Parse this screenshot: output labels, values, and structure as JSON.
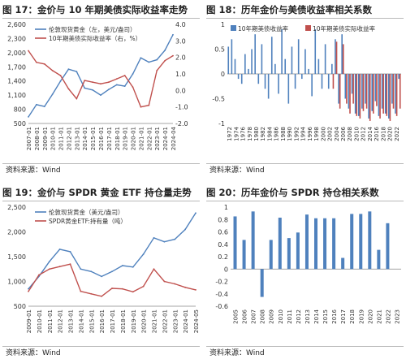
{
  "colors": {
    "blue": "#4f81bd",
    "red": "#c0504d",
    "axis": "#888888",
    "text": "#333333"
  },
  "chart_data": [
    {
      "id": "fig17",
      "type": "line",
      "title": "图 17：金价与 10 年期美债实际收益率走势",
      "source": "资料来源：Wind",
      "x": [
        "2007-01",
        "2008-01",
        "2009-01",
        "2010-01",
        "2011-01",
        "2012-01",
        "2013-01",
        "2014-01",
        "2015-01",
        "2016-01",
        "2017-01",
        "2018-01",
        "2019-01",
        "2020-01",
        "2021-01",
        "2022-01",
        "2023-01",
        "2024-01",
        "2024-04"
      ],
      "xticks": [
        "2007-01",
        "2008-01",
        "2009-01",
        "2010-01",
        "2011-01",
        "2012-01",
        "2013-01",
        "2014-01",
        "2015-01",
        "2016-01",
        "2017-01",
        "2018-01",
        "2019-01",
        "2020-01",
        "2021-01",
        "2022-01",
        "2023-01",
        "2024-01",
        "2024-04"
      ],
      "y_left": {
        "min": 500,
        "max": 2600,
        "ticks": [
          "500",
          "800",
          "1,100",
          "1,400",
          "1,700",
          "2,000",
          "2,300",
          "2,600"
        ]
      },
      "y_right": {
        "min": -2,
        "max": 4,
        "ticks": [
          "-2.0",
          "-1.0",
          "0.0",
          "1.0",
          "2.0",
          "3.0",
          "4.0"
        ],
        "reversed": true
      },
      "series": [
        {
          "name": "伦敦现货黄金（左，美元/盎司）",
          "axis": "left",
          "color": "#4f81bd",
          "values": [
            640,
            900,
            860,
            1120,
            1400,
            1650,
            1600,
            1250,
            1210,
            1100,
            1220,
            1320,
            1290,
            1550,
            1890,
            1800,
            1850,
            2050,
            2380
          ]
        },
        {
          "name": "10年期美债实际收益率（右，%）",
          "axis": "right",
          "color": "#c0504d",
          "values": [
            2.4,
            1.7,
            1.6,
            1.2,
            0.9,
            0.1,
            -0.5,
            0.6,
            0.5,
            0.4,
            0.5,
            0.7,
            0.9,
            0.2,
            -1.0,
            -0.9,
            1.2,
            1.8,
            2.1
          ]
        }
      ]
    },
    {
      "id": "fig18",
      "type": "bar",
      "title": "图 18：历年金价与美债收益率相关系数",
      "source": "资料来源：Wind",
      "categories": [
        "1972",
        "1973",
        "1974",
        "1975",
        "1976",
        "1977",
        "1978",
        "1979",
        "1980",
        "1981",
        "1982",
        "1983",
        "1984",
        "1985",
        "1986",
        "1987",
        "1988",
        "1989",
        "1990",
        "1991",
        "1992",
        "1993",
        "1994",
        "1995",
        "1996",
        "1997",
        "1998",
        "1999",
        "2000",
        "2001",
        "2002",
        "2003",
        "2004",
        "2005",
        "2006",
        "2007",
        "2008",
        "2009",
        "2010",
        "2011",
        "2012",
        "2013",
        "2014",
        "2015",
        "2016",
        "2017",
        "2018",
        "2019",
        "2020",
        "2021",
        "2022",
        "2023"
      ],
      "xticks": [
        "1972",
        "1974",
        "1976",
        "1978",
        "1980",
        "1982",
        "1984",
        "1986",
        "1988",
        "1990",
        "1992",
        "1994",
        "1996",
        "1998",
        "2000",
        "2002",
        "2004",
        "2006",
        "2008",
        "2010",
        "2012",
        "2014",
        "2016",
        "2018",
        "2020",
        "2022"
      ],
      "ylim": [
        -1,
        1
      ],
      "yticks": [
        "-1",
        "-0.5",
        "0",
        "0.5",
        "1"
      ],
      "series": [
        {
          "name": "10年期美债收益率",
          "color": "#4f81bd",
          "values": [
            0.55,
            0.7,
            0.3,
            -0.1,
            -0.2,
            0.4,
            0.1,
            0.5,
            0.8,
            -0.2,
            0.6,
            -0.3,
            -0.5,
            0.75,
            0.2,
            -0.4,
            0.9,
            0.3,
            -0.6,
            0.55,
            -0.3,
            0.7,
            -0.1,
            0.5,
            0.1,
            -0.45,
            0.9,
            0.3,
            -0.3,
            0.6,
            -0.3,
            0.2,
            0.7,
            -0.6,
            0.8,
            -0.5,
            -0.7,
            -0.4,
            -0.8,
            -0.85,
            -0.7,
            -0.6,
            -0.9,
            -0.75,
            -0.55,
            -0.85,
            -0.7,
            -0.8,
            -0.9,
            -0.6,
            -0.8,
            -0.1
          ]
        },
        {
          "name": "10年期美债实际收益率",
          "color": "#c0504d",
          "values": [
            null,
            null,
            null,
            null,
            null,
            null,
            null,
            null,
            null,
            null,
            null,
            null,
            null,
            null,
            null,
            null,
            null,
            null,
            null,
            null,
            null,
            null,
            null,
            null,
            null,
            null,
            null,
            null,
            null,
            null,
            null,
            -0.3,
            0.65,
            -0.7,
            0.6,
            -0.6,
            -0.8,
            -0.6,
            -0.85,
            -0.9,
            -0.75,
            -0.7,
            -0.95,
            -0.8,
            -0.65,
            -0.9,
            -0.8,
            -0.85,
            -0.95,
            -0.7,
            -0.85,
            -0.7
          ]
        }
      ]
    },
    {
      "id": "fig19",
      "type": "line",
      "title": "图 19：金价与 SPDR 黄金 ETF 持仓量走势",
      "source": "资料来源：Wind",
      "x": [
        "2009-01",
        "2010-01",
        "2011-01",
        "2012-01",
        "2013-01",
        "2014-01",
        "2015-01",
        "2016-01",
        "2017-01",
        "2018-01",
        "2019-01",
        "2020-01",
        "2021-01",
        "2022-01",
        "2023-01",
        "2024-01",
        "2024-05"
      ],
      "xticks": [
        "2009-01",
        "2010-01",
        "2011-01",
        "2012-01",
        "2013-01",
        "2014-01",
        "2015-01",
        "2016-01",
        "2017-01",
        "2018-01",
        "2019-01",
        "2020-01",
        "2021-01",
        "2022-01",
        "2023-01",
        "2024-01",
        "2024-05"
      ],
      "ylim": [
        500,
        2500
      ],
      "yticks": [
        "500",
        "1,000",
        "1,500",
        "2,000",
        "2,500"
      ],
      "series": [
        {
          "name": "伦敦现货黄金（美元/盎司）",
          "color": "#4f81bd",
          "values": [
            850,
            1100,
            1400,
            1650,
            1600,
            1250,
            1200,
            1100,
            1200,
            1320,
            1290,
            1550,
            1880,
            1800,
            1850,
            2050,
            2380
          ]
        },
        {
          "name": "SPDR黄金ETF:持有量（吨）",
          "color": "#c0504d",
          "values": [
            800,
            1130,
            1250,
            1300,
            1350,
            800,
            750,
            700,
            860,
            850,
            790,
            900,
            1250,
            1000,
            950,
            880,
            830
          ]
        }
      ]
    },
    {
      "id": "fig20",
      "type": "bar",
      "title": "图 20：历年金价与 SPDR 持仓相关系数",
      "source": "资料来源：Wind",
      "categories": [
        "2005",
        "2006",
        "2007",
        "2008",
        "2009",
        "2010",
        "2011",
        "2012",
        "2013",
        "2014",
        "2015",
        "2016",
        "2017",
        "2018",
        "2019",
        "2020",
        "2021",
        "2022",
        "2023"
      ],
      "ylim": [
        -0.6,
        1
      ],
      "yticks": [
        "-0.6",
        "-0.4",
        "-0.2",
        "0",
        "0.2",
        "0.4",
        "0.6",
        "0.8",
        "1"
      ],
      "series": [
        {
          "name": "",
          "color": "#4f81bd",
          "values": [
            0.85,
            0.47,
            0.93,
            -0.45,
            0.47,
            0.83,
            0.5,
            0.59,
            0.88,
            0.82,
            0.82,
            0.82,
            0.18,
            0.89,
            0.89,
            0.93,
            0.31,
            0.74,
            null
          ]
        }
      ]
    }
  ]
}
